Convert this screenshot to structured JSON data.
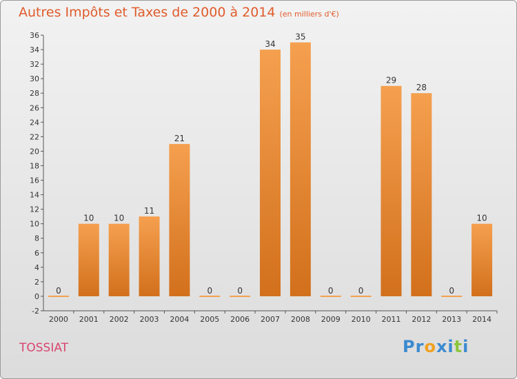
{
  "chart_data": {
    "type": "bar",
    "title": "Autres Impôts et Taxes de 2000 à 2014",
    "unit_label": "(en milliers d'€)",
    "categories": [
      "2000",
      "2001",
      "2002",
      "2003",
      "2004",
      "2005",
      "2006",
      "2007",
      "2008",
      "2009",
      "2010",
      "2011",
      "2012",
      "2013",
      "2014"
    ],
    "values": [
      0,
      10,
      10,
      11,
      21,
      0,
      0,
      34,
      35,
      0,
      0,
      29,
      28,
      0,
      10
    ],
    "xlabel": "",
    "ylabel": "",
    "ylim": [
      -2,
      36
    ],
    "yticks": [
      -2,
      0,
      2,
      4,
      6,
      8,
      10,
      12,
      14,
      16,
      18,
      20,
      22,
      24,
      26,
      28,
      30,
      32,
      34,
      36
    ],
    "grid": false,
    "bar_color_top": "#f5a04f",
    "bar_color_bottom": "#d2701c"
  },
  "commune": "TOSSIAT",
  "logo": {
    "letters": [
      "P",
      "r",
      "o",
      "x",
      "i",
      "t",
      "i"
    ],
    "colors": [
      "#3a8ad0",
      "#3a8ad0",
      "#f0a020",
      "#3a8ad0",
      "#3a8ad0",
      "#8cc63f",
      "#3a8ad0"
    ]
  },
  "colors": {
    "title": "#e05b2b",
    "commune": "#d9456e"
  }
}
